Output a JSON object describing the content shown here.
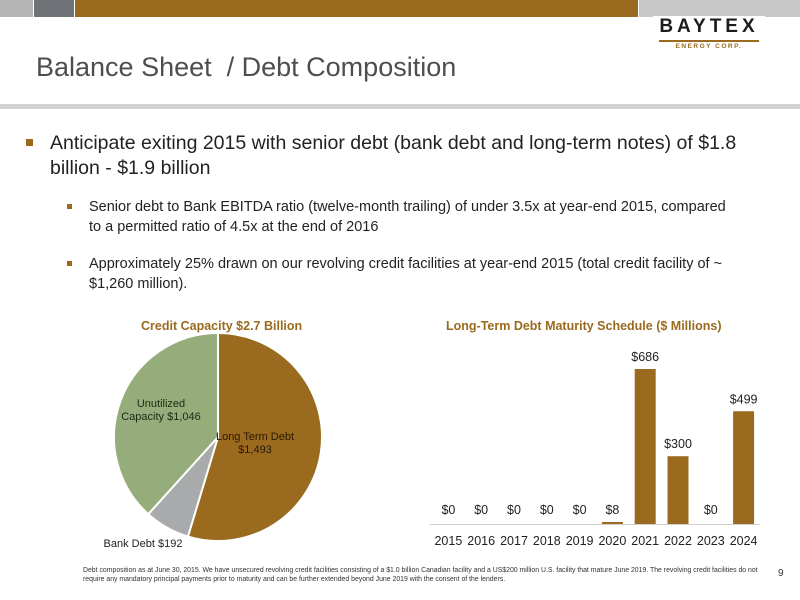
{
  "logo": {
    "name": "BAYTEX",
    "sub": "ENERGY CORP."
  },
  "title": "Balance Sheet  / Debt Composition",
  "bullets": {
    "main": "Anticipate exiting 2015 with senior debt (bank debt and long-term notes) of $1.8 billion - $1.9 billion",
    "sub1": "Senior debt to Bank EBITDA ratio (twelve-month trailing) of under 3.5x at year-end 2015, compared to a permitted ratio of 4.5x at the end of 2016",
    "sub2": "Approximately 25% drawn on our revolving credit facilities at year-end 2015 (total credit facility of ~ $1,260 million)."
  },
  "chart_data": [
    {
      "type": "pie",
      "title": "Credit Capacity $2.7 Billion",
      "slices": [
        {
          "label": "Long Term Debt $1,493",
          "value": 1493,
          "color": "#9a6a1e"
        },
        {
          "label": "Bank Debt $192",
          "value": 192,
          "color": "#a9aaab"
        },
        {
          "label": "Unutilized Capacity $1,046",
          "value": 1046,
          "color": "#95ad7b"
        }
      ]
    },
    {
      "type": "bar",
      "title": "Long-Term Debt Maturity Schedule ($ Millions)",
      "categories": [
        "2015",
        "2016",
        "2017",
        "2018",
        "2019",
        "2020",
        "2021",
        "2022",
        "2023",
        "2024"
      ],
      "values": [
        0,
        0,
        0,
        0,
        0,
        8,
        686,
        300,
        0,
        499
      ],
      "value_labels": [
        "$0",
        "$0",
        "$0",
        "$0",
        "$0",
        "$8",
        "$686",
        "$300",
        "$0",
        "$499"
      ],
      "color": "#9a6a1e",
      "ylim": [
        0,
        686
      ]
    }
  ],
  "footnote": "Debt composition as at June 30, 2015. We have unsecured revolving credit facilities consisting of a $1.0 billion Canadian facility and a US$200 million U.S. facility that mature June 2019. The revolving credit facilities do not require any mandatory principal payments prior to maturity and can be further extended beyond June 2019 with the consent of the lenders.",
  "page_number": "9"
}
